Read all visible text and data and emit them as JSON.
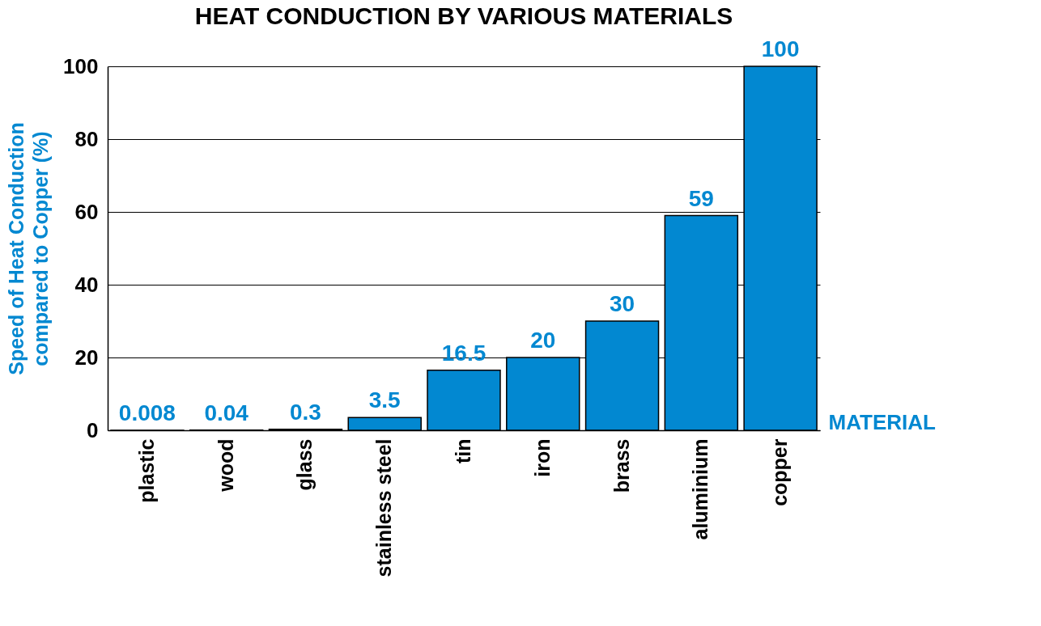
{
  "chart_data": {
    "type": "bar",
    "title": "HEAT CONDUCTION BY VARIOUS MATERIALS",
    "xlabel": "MATERIAL",
    "ylabel": "Speed of Heat Conduction\ncompared to Copper (%)",
    "categories": [
      "plastic",
      "wood",
      "glass",
      "stainless steel",
      "tin",
      "iron",
      "brass",
      "aluminium",
      "copper"
    ],
    "values": [
      0.008,
      0.04,
      0.3,
      3.5,
      16.5,
      20,
      30,
      59,
      100
    ],
    "color": "#0288d1",
    "ylim": [
      0,
      100
    ],
    "yticks": [
      0,
      20,
      40,
      60,
      80,
      100
    ],
    "grid": "y",
    "data_labels": true
  }
}
